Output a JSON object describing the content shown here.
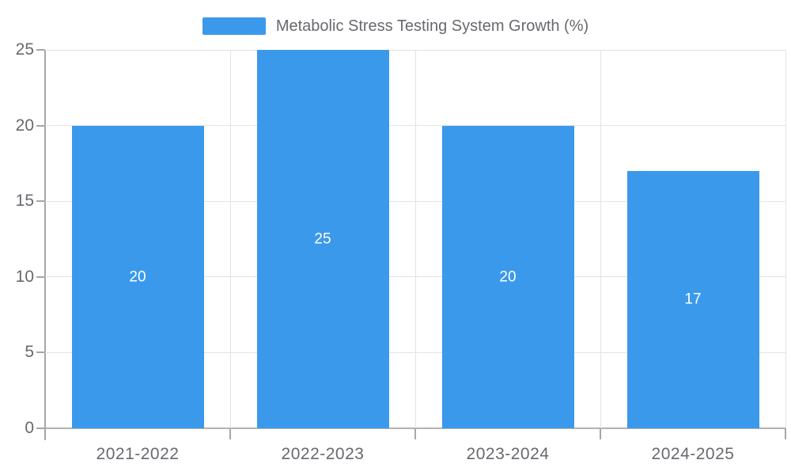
{
  "chart_data": {
    "type": "bar",
    "title": "Metabolic Stress Testing System Growth (%)",
    "categories": [
      "2021-2022",
      "2022-2023",
      "2023-2024",
      "2024-2025"
    ],
    "values": [
      20,
      25,
      20,
      17
    ],
    "yticks": [
      0,
      5,
      10,
      15,
      20,
      25
    ],
    "ylim": [
      0,
      25
    ],
    "grid": true,
    "legend_position": "top-center",
    "colors": {
      "bar": "#3b99ec",
      "bar_value_text": "#ffffff",
      "axis": "#a6a6a6",
      "gridline": "#e3e3e3",
      "text": "#68696e",
      "background": "#ffffff"
    }
  }
}
